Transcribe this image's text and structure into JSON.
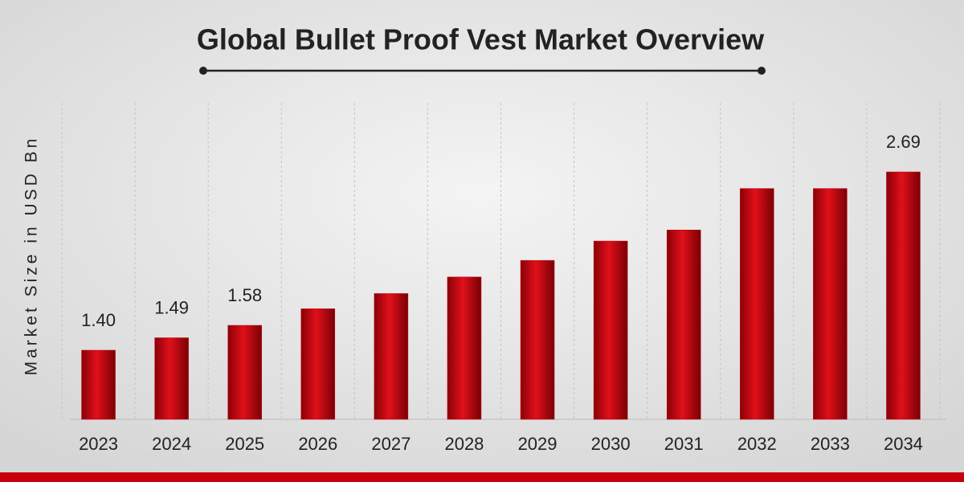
{
  "chart_data": {
    "type": "bar",
    "title": "Global Bullet Proof Vest Market Overview",
    "y_label": "Market Size in USD Bn",
    "categories": [
      "2023",
      "2024",
      "2025",
      "2026",
      "2027",
      "2028",
      "2029",
      "2030",
      "2031",
      "2032",
      "2033",
      "2034"
    ],
    "values": [
      1.4,
      1.49,
      1.58,
      1.7,
      1.81,
      1.93,
      2.05,
      2.19,
      2.27,
      2.57,
      2.57,
      2.69
    ],
    "value_labels": [
      "1.40",
      "1.49",
      "1.58",
      null,
      null,
      null,
      null,
      null,
      null,
      null,
      null,
      "2.69"
    ],
    "color": "#c8000a"
  }
}
